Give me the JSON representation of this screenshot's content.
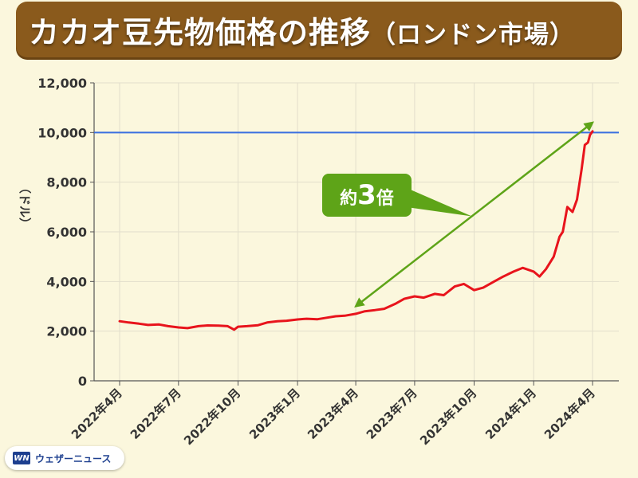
{
  "title": {
    "main": "カカオ豆先物価格の推移",
    "suffix": "（ロンドン市場）"
  },
  "brand": {
    "mark": "WN",
    "name": "ウェザーニュース"
  },
  "colors": {
    "background": "#fbf7dd",
    "banner": "#8a5a1c",
    "line": "#e8141c",
    "reference_line": "#3a6fe0",
    "annotation": "#5ea418"
  },
  "chart_data": {
    "type": "line",
    "title": "カカオ豆先物価格の推移（ロンドン市場）",
    "xlabel": "",
    "ylabel": "（ドル）",
    "ylim": [
      0,
      12000
    ],
    "yticks": [
      0,
      2000,
      4000,
      6000,
      8000,
      10000,
      12000
    ],
    "ytick_labels": [
      "0",
      "2,000",
      "4,000",
      "6,000",
      "8,000",
      "10,000",
      "12,000"
    ],
    "xticks": [
      "2022-04",
      "2022-07",
      "2022-10",
      "2023-01",
      "2023-04",
      "2023-07",
      "2023-10",
      "2024-01",
      "2024-04"
    ],
    "xtick_labels": [
      "2022年4月",
      "2022年7月",
      "2022年10月",
      "2023年1月",
      "2023年4月",
      "2023年7月",
      "2023年10月",
      "2024年1月",
      "2024年4月"
    ],
    "grid": true,
    "reference_lines": [
      {
        "y": 10000,
        "color": "#3a6fe0"
      }
    ],
    "annotation": {
      "text_prefix": "約",
      "text_number": "3",
      "text_suffix": "倍",
      "arrow_from": {
        "x": "2023-04-01",
        "y": 3000
      },
      "arrow_to": {
        "x": "2024-04-01",
        "y": 10400
      }
    },
    "series": [
      {
        "color": "#e8141c",
        "points": [
          [
            "2022-04-01",
            2400
          ],
          [
            "2022-04-15",
            2350
          ],
          [
            "2022-05-01",
            2300
          ],
          [
            "2022-05-15",
            2250
          ],
          [
            "2022-06-01",
            2270
          ],
          [
            "2022-06-15",
            2200
          ],
          [
            "2022-07-01",
            2150
          ],
          [
            "2022-07-15",
            2120
          ],
          [
            "2022-08-01",
            2200
          ],
          [
            "2022-08-15",
            2230
          ],
          [
            "2022-09-01",
            2220
          ],
          [
            "2022-09-15",
            2200
          ],
          [
            "2022-09-25",
            2060
          ],
          [
            "2022-10-01",
            2180
          ],
          [
            "2022-10-15",
            2200
          ],
          [
            "2022-11-01",
            2240
          ],
          [
            "2022-11-15",
            2350
          ],
          [
            "2022-12-01",
            2400
          ],
          [
            "2022-12-15",
            2420
          ],
          [
            "2023-01-01",
            2470
          ],
          [
            "2023-01-15",
            2500
          ],
          [
            "2023-02-01",
            2480
          ],
          [
            "2023-02-15",
            2540
          ],
          [
            "2023-03-01",
            2600
          ],
          [
            "2023-03-15",
            2620
          ],
          [
            "2023-04-01",
            2700
          ],
          [
            "2023-04-15",
            2800
          ],
          [
            "2023-05-01",
            2850
          ],
          [
            "2023-05-15",
            2900
          ],
          [
            "2023-06-01",
            3100
          ],
          [
            "2023-06-15",
            3300
          ],
          [
            "2023-07-01",
            3400
          ],
          [
            "2023-07-15",
            3350
          ],
          [
            "2023-08-01",
            3500
          ],
          [
            "2023-08-15",
            3450
          ],
          [
            "2023-09-01",
            3800
          ],
          [
            "2023-09-15",
            3900
          ],
          [
            "2023-10-01",
            3650
          ],
          [
            "2023-10-15",
            3750
          ],
          [
            "2023-11-01",
            4000
          ],
          [
            "2023-11-15",
            4200
          ],
          [
            "2023-12-01",
            4400
          ],
          [
            "2023-12-15",
            4550
          ],
          [
            "2024-01-01",
            4400
          ],
          [
            "2024-01-10",
            4200
          ],
          [
            "2024-01-20",
            4500
          ],
          [
            "2024-02-01",
            5000
          ],
          [
            "2024-02-10",
            5800
          ],
          [
            "2024-02-15",
            6000
          ],
          [
            "2024-02-22",
            7000
          ],
          [
            "2024-03-01",
            6800
          ],
          [
            "2024-03-08",
            7300
          ],
          [
            "2024-03-15",
            8500
          ],
          [
            "2024-03-20",
            9500
          ],
          [
            "2024-03-25",
            9600
          ],
          [
            "2024-03-28",
            9900
          ],
          [
            "2024-04-01",
            10050
          ]
        ]
      }
    ]
  }
}
